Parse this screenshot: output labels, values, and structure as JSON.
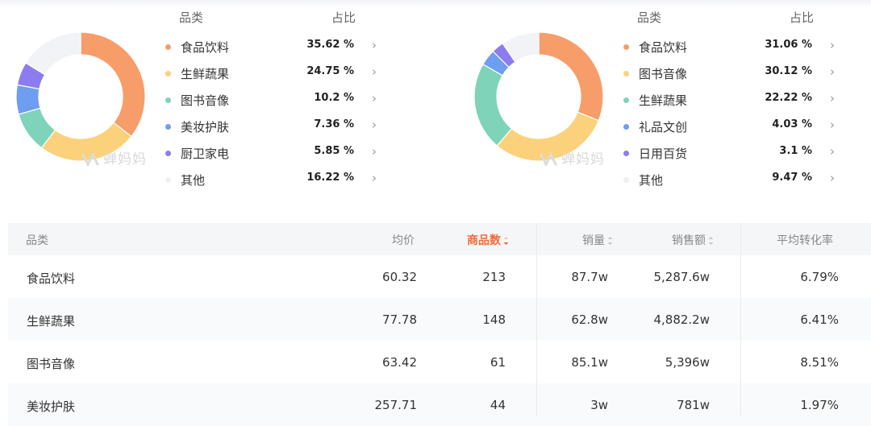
{
  "chart_data": [
    {
      "type": "pie",
      "variant": "donut",
      "legend_header": {
        "category": "品类",
        "share": "占比"
      },
      "slices": [
        {
          "label": "食品饮料",
          "value": 35.62,
          "display": "35.62 %",
          "color": "#f79d6a"
        },
        {
          "label": "生鲜蔬果",
          "value": 24.75,
          "display": "24.75 %",
          "color": "#fbd17b"
        },
        {
          "label": "图书音像",
          "value": 10.2,
          "display": "10.2 %",
          "color": "#7fd3b8"
        },
        {
          "label": "美妆护肤",
          "value": 7.36,
          "display": "7.36 %",
          "color": "#6f9ef0"
        },
        {
          "label": "厨卫家电",
          "value": 5.85,
          "display": "5.85 %",
          "color": "#8d7cf0"
        },
        {
          "label": "其他",
          "value": 16.22,
          "display": "16.22 %",
          "color": "#f1f3f6"
        }
      ],
      "watermark": "蝉妈妈"
    },
    {
      "type": "pie",
      "variant": "donut",
      "legend_header": {
        "category": "品类",
        "share": "占比"
      },
      "slices": [
        {
          "label": "食品饮料",
          "value": 31.06,
          "display": "31.06 %",
          "color": "#f79d6a"
        },
        {
          "label": "图书音像",
          "value": 30.12,
          "display": "30.12 %",
          "color": "#fbd17b"
        },
        {
          "label": "生鲜蔬果",
          "value": 22.22,
          "display": "22.22 %",
          "color": "#7fd3b8"
        },
        {
          "label": "礼品文创",
          "value": 4.03,
          "display": "4.03 %",
          "color": "#6f9ef0"
        },
        {
          "label": "日用百货",
          "value": 3.1,
          "display": "3.1 %",
          "color": "#8d7cf0"
        },
        {
          "label": "其他",
          "value": 9.47,
          "display": "9.47 %",
          "color": "#f1f3f6"
        }
      ],
      "watermark": "蝉妈妈"
    },
    {
      "type": "table",
      "columns": [
        "品类",
        "均价",
        "商品数",
        "销量",
        "销售额",
        "平均转化率"
      ],
      "sorted_column": "商品数",
      "rows": [
        [
          "食品饮料",
          "60.32",
          "213",
          "87.7w",
          "5,287.6w",
          "6.79%"
        ],
        [
          "生鲜蔬果",
          "77.78",
          "148",
          "62.8w",
          "4,882.2w",
          "6.41%"
        ],
        [
          "图书音像",
          "63.42",
          "61",
          "85.1w",
          "5,396w",
          "8.51%"
        ],
        [
          "美妆护肤",
          "257.71",
          "44",
          "3w",
          "781w",
          "1.97%"
        ]
      ]
    }
  ],
  "colors": {
    "accent_sort": "#f26a3a",
    "header_bg": "#f5f6f8",
    "row_alt_bg": "#f9fafb"
  }
}
